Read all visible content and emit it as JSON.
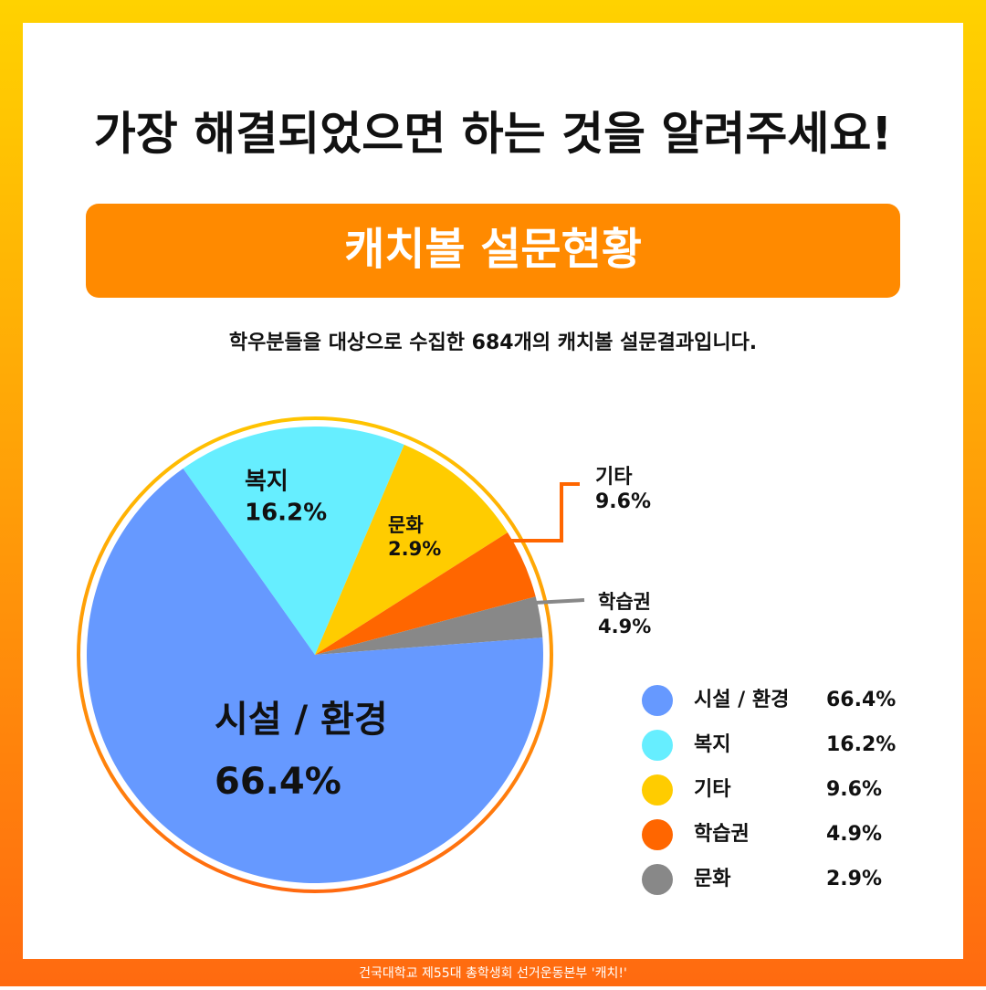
{
  "title": "가장 해결되었으면 하는 것을 알려주세요!",
  "banner": "캐치볼 설문현황",
  "subtitle": "학우분들을 대상으로 수집한 684개의 캐치볼 설문결과입니다.",
  "footer": "건국대학교 제55대 총학생회 선거운동본부 '캐치!'",
  "chart_data": {
    "type": "pie",
    "categories": [
      "시설 / 환경",
      "복지",
      "기타",
      "학습권",
      "문화"
    ],
    "values": [
      66.4,
      16.2,
      9.6,
      4.9,
      2.9
    ],
    "value_labels": [
      "66.4%",
      "16.2%",
      "9.6%",
      "4.9%",
      "2.9%"
    ],
    "colors": [
      "#6699ff",
      "#66eeff",
      "#ffcc00",
      "#ff6600",
      "#888888"
    ]
  }
}
